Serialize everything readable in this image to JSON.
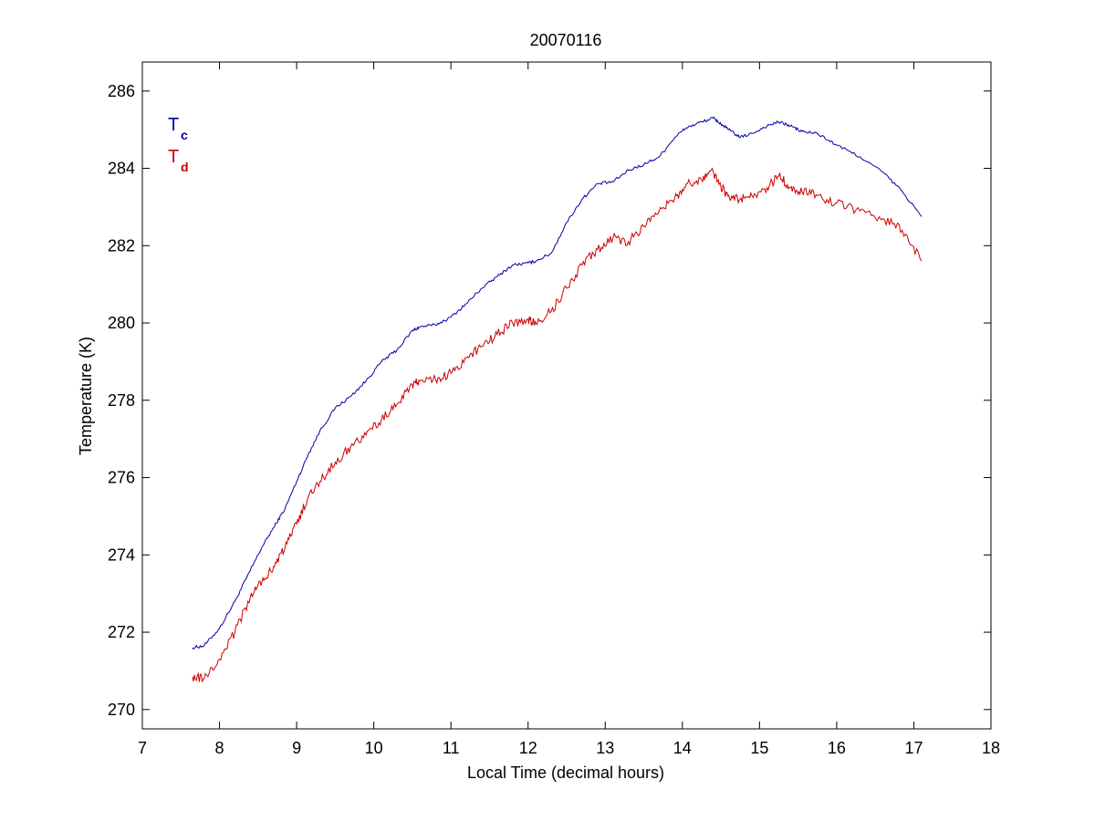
{
  "chart_data": {
    "type": "line",
    "title": "20070116",
    "xlabel": "Local Time (decimal hours)",
    "ylabel": "Temperature (K)",
    "xlim": [
      7,
      18
    ],
    "ylim": [
      269.5,
      286.75
    ],
    "xticks": [
      7,
      8,
      9,
      10,
      11,
      12,
      13,
      14,
      15,
      16,
      17,
      18
    ],
    "yticks": [
      270,
      272,
      274,
      276,
      278,
      280,
      282,
      284,
      286
    ],
    "grid": false,
    "legend_position": "top-left",
    "series": [
      {
        "name": "T",
        "subscript": "c",
        "color": "#0000aa",
        "x": [
          7.65,
          7.8,
          8.0,
          8.2,
          8.4,
          8.55,
          8.7,
          8.85,
          9.0,
          9.15,
          9.3,
          9.5,
          9.7,
          9.9,
          10.1,
          10.3,
          10.5,
          10.6,
          10.8,
          11.0,
          11.2,
          11.4,
          11.6,
          11.8,
          12.0,
          12.1,
          12.3,
          12.5,
          12.7,
          12.9,
          13.1,
          13.3,
          13.5,
          13.7,
          13.9,
          14.05,
          14.25,
          14.4,
          14.5,
          14.6,
          14.75,
          14.9,
          15.1,
          15.25,
          15.4,
          15.55,
          15.75,
          16.0,
          16.3,
          16.6,
          16.85,
          17.1
        ],
        "y": [
          271.6,
          271.65,
          272.1,
          272.8,
          273.6,
          274.2,
          274.7,
          275.2,
          275.9,
          276.6,
          277.2,
          277.8,
          278.1,
          278.5,
          279.0,
          279.3,
          279.8,
          279.9,
          279.95,
          280.15,
          280.5,
          280.9,
          281.2,
          281.5,
          281.55,
          281.6,
          281.8,
          282.6,
          283.2,
          283.6,
          283.65,
          283.95,
          284.1,
          284.3,
          284.8,
          285.05,
          285.2,
          285.3,
          285.15,
          285.0,
          284.8,
          284.9,
          285.1,
          285.2,
          285.1,
          284.95,
          284.9,
          284.6,
          284.3,
          283.9,
          283.4,
          282.75
        ]
      },
      {
        "name": "T",
        "subscript": "d",
        "color": "#cc0000",
        "x": [
          7.65,
          7.8,
          8.0,
          8.2,
          8.4,
          8.55,
          8.7,
          8.85,
          9.0,
          9.15,
          9.3,
          9.5,
          9.7,
          9.9,
          10.1,
          10.3,
          10.5,
          10.6,
          10.8,
          11.0,
          11.2,
          11.4,
          11.6,
          11.8,
          12.0,
          12.1,
          12.3,
          12.5,
          12.7,
          12.9,
          13.1,
          13.3,
          13.5,
          13.7,
          13.9,
          14.05,
          14.25,
          14.4,
          14.5,
          14.6,
          14.75,
          14.9,
          15.1,
          15.25,
          15.4,
          15.55,
          15.75,
          16.0,
          16.3,
          16.6,
          16.85,
          17.1
        ],
        "y": [
          270.85,
          270.8,
          271.3,
          272.0,
          272.9,
          273.3,
          273.7,
          274.2,
          274.8,
          275.5,
          275.9,
          276.4,
          276.8,
          277.1,
          277.5,
          277.9,
          278.4,
          278.5,
          278.55,
          278.7,
          279.1,
          279.4,
          279.7,
          280.0,
          280.1,
          280.0,
          280.3,
          280.9,
          281.5,
          281.9,
          282.2,
          282.1,
          282.5,
          282.9,
          283.2,
          283.6,
          283.7,
          283.9,
          283.5,
          283.3,
          283.2,
          283.3,
          283.5,
          283.8,
          283.5,
          283.4,
          283.3,
          283.1,
          282.9,
          282.7,
          282.4,
          281.6
        ]
      }
    ]
  }
}
